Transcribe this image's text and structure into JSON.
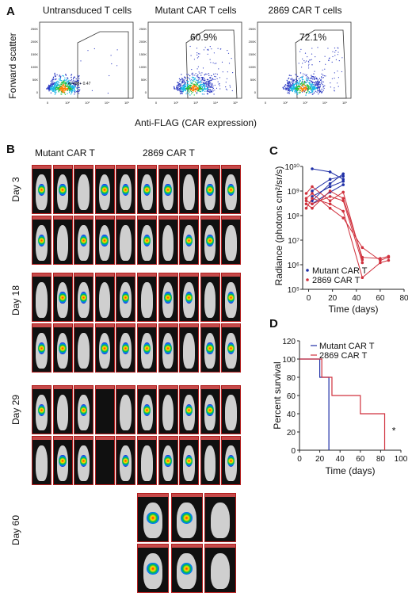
{
  "panel_labels": {
    "a": "A",
    "b": "B",
    "c": "C",
    "d": "D"
  },
  "flow": {
    "panels": [
      {
        "title": "Untransduced  T cells",
        "gate_label": "AF488+ 0.47",
        "pct": ""
      },
      {
        "title": "Mutant  CAR T cells",
        "gate_label": "",
        "pct": "60.9%"
      },
      {
        "title": "2869 CAR T cells",
        "gate_label": "",
        "pct": "72.1%"
      }
    ],
    "ylabel": "Forward scatter",
    "xlabel": "Anti-FLAG (CAR expression)",
    "y_ticks": [
      "250K",
      "200K",
      "150K",
      "100K",
      "50K",
      "0"
    ],
    "x_ticks": [
      "0",
      "10²",
      "10³",
      "10⁴",
      "10⁵"
    ]
  },
  "imaging": {
    "groups": [
      "Mutant  CAR T",
      "2869 CAR T"
    ],
    "days": [
      "Day  3",
      "Day 18",
      "Day 29",
      "Day 60"
    ]
  },
  "colors": {
    "mutant": "#1f2fa6",
    "c2869": "#d0313d",
    "tile_border": "#b21e1e",
    "axis": "#222222"
  },
  "chart_data": [
    {
      "type": "line",
      "panel": "C",
      "xlabel": "Time (days)",
      "ylabel": "Radiance (photons cm²/sr/s)",
      "xlim": [
        -5,
        80
      ],
      "x_ticks": [
        0,
        20,
        40,
        60,
        80
      ],
      "ylim": [
        100000,
        10000000000
      ],
      "y_scale": "log",
      "y_tick_labels": [
        "10¹⁰",
        "10⁹",
        "10⁸",
        "10⁷",
        "10⁶",
        "10⁵"
      ],
      "legend": [
        "Mutant CAR T",
        "2869 CAR T"
      ],
      "legend_position": "bottom-left",
      "series": [
        {
          "name": "Mutant CAR T",
          "points": [
            [
              3,
              400000000
            ],
            [
              18,
              2000000000
            ],
            [
              29,
              5000000000
            ]
          ]
        },
        {
          "name": "Mutant CAR T",
          "points": [
            [
              3,
              1000000000
            ],
            [
              18,
              3000000000
            ],
            [
              29,
              4000000000
            ]
          ]
        },
        {
          "name": "Mutant CAR T",
          "points": [
            [
              3,
              600000000
            ],
            [
              18,
              1500000000
            ],
            [
              29,
              2500000000
            ]
          ]
        },
        {
          "name": "Mutant CAR T",
          "points": [
            [
              3,
              8000000000
            ],
            [
              18,
              6000000000
            ],
            [
              29,
              3000000000
            ]
          ]
        },
        {
          "name": "Mutant CAR T",
          "points": [
            [
              3,
              300000000
            ],
            [
              18,
              900000000
            ],
            [
              29,
              1800000000
            ]
          ]
        },
        {
          "name": "2869 CAR T",
          "points": [
            [
              -2,
              300000000
            ],
            [
              3,
              200000000
            ],
            [
              18,
              1000000000
            ],
            [
              29,
              500000000
            ],
            [
              45,
              2000000
            ],
            [
              60,
              1800000
            ],
            [
              67,
              2200000
            ]
          ]
        },
        {
          "name": "2869 CAR T",
          "points": [
            [
              -2,
              200000000
            ],
            [
              3,
              500000000
            ],
            [
              18,
              300000000
            ],
            [
              29,
              150000000
            ],
            [
              45,
              300000
            ],
            [
              60,
              1200000
            ],
            [
              67,
              1500000
            ]
          ]
        },
        {
          "name": "2869 CAR T",
          "points": [
            [
              -2,
              500000000
            ],
            [
              3,
              800000000
            ],
            [
              18,
              200000000
            ],
            [
              29,
              80000000
            ],
            [
              45,
              5000000
            ],
            [
              60,
              1500000
            ],
            [
              67,
              2000000
            ]
          ]
        },
        {
          "name": "2869 CAR T",
          "points": [
            [
              -2,
              400000000
            ],
            [
              3,
              300000000
            ],
            [
              18,
              600000000
            ],
            [
              29,
              400000000
            ],
            [
              45,
              1200000
            ]
          ]
        },
        {
          "name": "2869 CAR T",
          "points": [
            [
              -2,
              800000000
            ],
            [
              3,
              1500000000
            ],
            [
              18,
              400000000
            ],
            [
              29,
              900000000
            ],
            [
              45,
              1600000
            ]
          ]
        }
      ]
    },
    {
      "type": "line",
      "panel": "D",
      "xlabel": "Time (days)",
      "ylabel": "Percent survival",
      "xlim": [
        0,
        100
      ],
      "x_ticks": [
        0,
        20,
        40,
        60,
        80,
        100
      ],
      "ylim": [
        0,
        120
      ],
      "y_ticks": [
        0,
        20,
        40,
        60,
        80,
        100,
        120
      ],
      "legend": [
        "Mutant CAR T",
        "2869 CAR T"
      ],
      "legend_position": "top-right",
      "annotation": "*",
      "series": [
        {
          "name": "Mutant CAR T",
          "steps": [
            [
              0,
              100
            ],
            [
              20,
              80
            ],
            [
              29,
              0
            ]
          ]
        },
        {
          "name": "2869 CAR T",
          "steps": [
            [
              0,
              100
            ],
            [
              22,
              80
            ],
            [
              32,
              60
            ],
            [
              60,
              40
            ],
            [
              84,
              0
            ]
          ]
        }
      ]
    }
  ]
}
